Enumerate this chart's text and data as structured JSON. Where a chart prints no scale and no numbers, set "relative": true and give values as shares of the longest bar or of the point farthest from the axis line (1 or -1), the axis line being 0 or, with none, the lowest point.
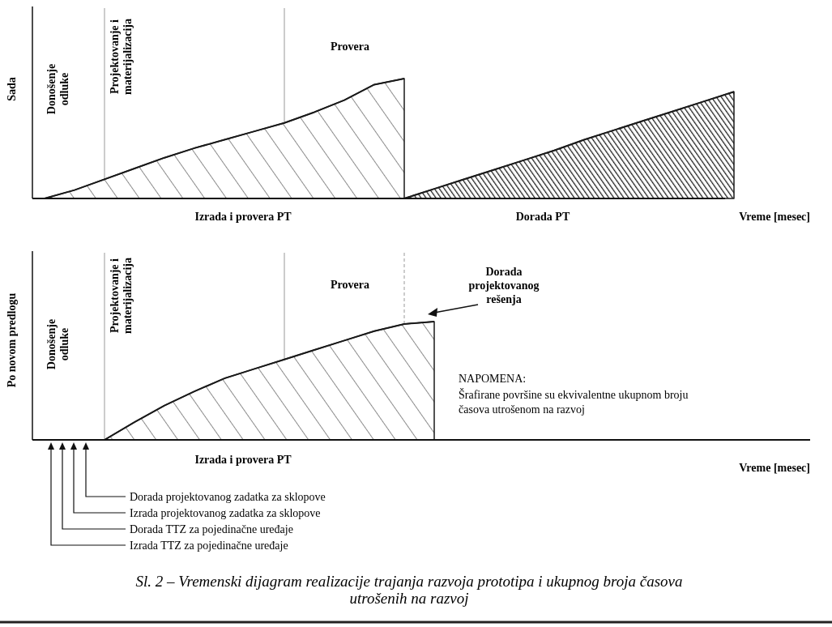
{
  "chart_data": [
    {
      "type": "area",
      "relative": true,
      "ylabel": "Sada",
      "xlabel": "Vreme [mesec]",
      "categories": [
        null,
        null,
        null,
        null,
        null,
        null,
        null,
        null,
        null,
        null,
        null,
        null,
        null,
        null,
        null,
        null,
        null,
        null,
        null,
        null,
        null,
        null,
        null,
        null
      ],
      "series": [
        {
          "color": "#1a1a1a",
          "values": [
            0,
            0.07,
            0.16,
            0.25,
            0.34,
            0.42,
            0.49,
            0.56,
            0.63,
            0.72,
            0.82,
            0.95,
            1,
            null,
            null,
            null,
            null,
            null,
            null,
            null,
            null,
            null,
            null,
            null
          ]
        },
        {
          "color": "#1a1a1a",
          "values": [
            null,
            null,
            null,
            null,
            null,
            null,
            null,
            null,
            null,
            null,
            null,
            null,
            0,
            0.08,
            0.16,
            0.24,
            0.32,
            0.4,
            0.49,
            0.57,
            0.65,
            0.73,
            0.81,
            0.89
          ]
        }
      ],
      "annotations": [
        "Donošenje odluke",
        "Projektovanje i materijalizacija",
        "Provera",
        "Izrada i provera PT",
        "Dorada PT"
      ]
    },
    {
      "type": "area",
      "relative": true,
      "ylabel": "Po novom predlogu",
      "xlabel": "Vreme [mesec]",
      "categories": [
        null,
        null,
        null,
        null,
        null,
        null,
        null,
        null,
        null,
        null,
        null,
        null,
        null,
        null,
        null,
        null,
        null,
        null,
        null,
        null,
        null,
        null,
        null,
        null
      ],
      "series": [
        {
          "color": "#1a1a1a",
          "values": [
            null,
            null,
            0,
            0.15,
            0.29,
            0.41,
            0.52,
            0.6,
            0.68,
            0.76,
            0.84,
            0.92,
            0.98,
            1,
            null,
            null,
            null,
            null,
            null,
            null,
            null,
            null,
            null,
            null
          ]
        }
      ],
      "annotations": [
        "Donošenje odluke",
        "Projektovanje i materijalizacija",
        "Provera",
        "Dorada projektovanog rešenja",
        "NAPOMENA:",
        "Šrafirane površine su ekvivalentne ukupnom broju časova utrošenom na razvoj",
        "Izrada i provera PT",
        "Dorada projektovanog zadatka za sklopove",
        "Izrada projektovanog zadatka za sklopove",
        "Dorada TTZ za pojedinačne uređaje",
        "Izrada TTZ za pojedinačne uređaje",
        "Sl. 2 – Vremenski dijagram realizacije trajanja razvoja prototipa i ukupnog broja časova utrošenih na razvoj"
      ]
    }
  ]
}
